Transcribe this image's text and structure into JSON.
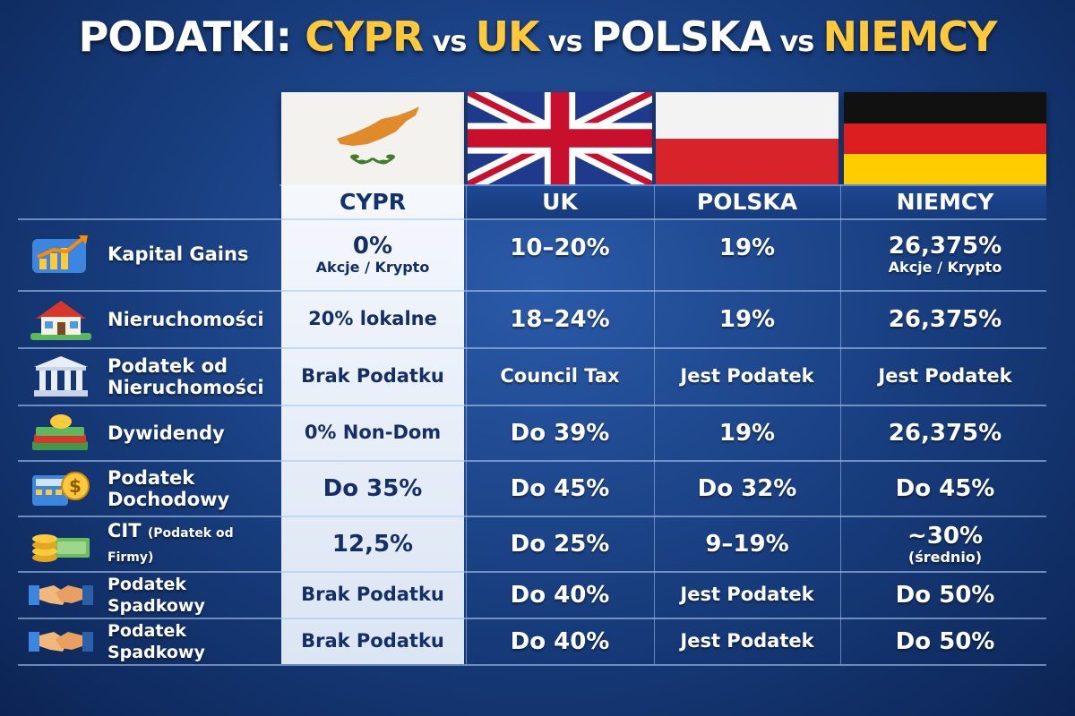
{
  "title": {
    "w1": "PODATKI: ",
    "y1": "CYPR",
    "vs1": " vs ",
    "y2": "UK",
    "vs2": " vs ",
    "w2": "POLSKA",
    "vs3": " vs ",
    "y3": "NIEMCY"
  },
  "columns": [
    "CYPR",
    "UK",
    "POLSKA",
    "NIEMCY"
  ],
  "colors": {
    "accent_yellow": "#ffc93a",
    "cyprus_text": "#142e66",
    "background": "#173c7c"
  },
  "rows": [
    {
      "icon": "chart-growth-icon",
      "label": "Kapital Gains",
      "label_small": "",
      "cypr": "0%",
      "cypr_sub": "Akcje / Krypto",
      "uk": "10–20%",
      "polska": "19%",
      "niemcy": "26,375%",
      "niemcy_sub": "Akcje / Krypto"
    },
    {
      "icon": "house-icon",
      "label": "Nieruchomości",
      "label_small": "",
      "cypr": "20% lokalne",
      "cypr_sub": "",
      "uk": "18–24%",
      "polska": "19%",
      "niemcy": "26,375%",
      "niemcy_sub": ""
    },
    {
      "icon": "bank-building-icon",
      "label": "Podatek od Nieruchomości",
      "label_small": "",
      "cypr": "Brak Podatku",
      "cypr_sub": "",
      "uk": "Council Tax",
      "polska": "Jest Podatek",
      "niemcy": "Jest Podatek",
      "niemcy_sub": ""
    },
    {
      "icon": "money-stack-icon",
      "label": "Dywidendy",
      "label_small": "",
      "cypr": "0% Non-Dom",
      "cypr_sub": "",
      "uk": "Do 39%",
      "polska": "19%",
      "niemcy": "26,375%",
      "niemcy_sub": ""
    },
    {
      "icon": "calculator-dollar-icon",
      "label": "Podatek Dochodowy",
      "label_small": "",
      "cypr": "Do 35%",
      "cypr_sub": "",
      "uk": "Do 45%",
      "polska": "Do 32%",
      "niemcy": "Do 45%",
      "niemcy_sub": ""
    },
    {
      "icon": "coins-cash-icon",
      "label": "CIT",
      "label_small": "(Podatek od Firmy)",
      "cypr": "12,5%",
      "cypr_sub": "",
      "uk": "Do 25%",
      "polska": "9–19%",
      "niemcy": "~30%",
      "niemcy_sub": "(średnio)"
    },
    {
      "icon": "handshake-icon",
      "label": "Podatek Spadkowy",
      "label_small": "",
      "cypr": "Brak Podatku",
      "cypr_sub": "",
      "uk": "Do 40%",
      "polska": "Jest Podatek",
      "niemcy": "Do 50%",
      "niemcy_sub": ""
    },
    {
      "icon": "handshake-icon",
      "label": "Podatek Spadkowy",
      "label_small": "",
      "cypr": "Brak Podatku",
      "cypr_sub": "",
      "uk": "Do 40%",
      "polska": "Jest Podatek",
      "niemcy": "Do 50%",
      "niemcy_sub": ""
    }
  ]
}
